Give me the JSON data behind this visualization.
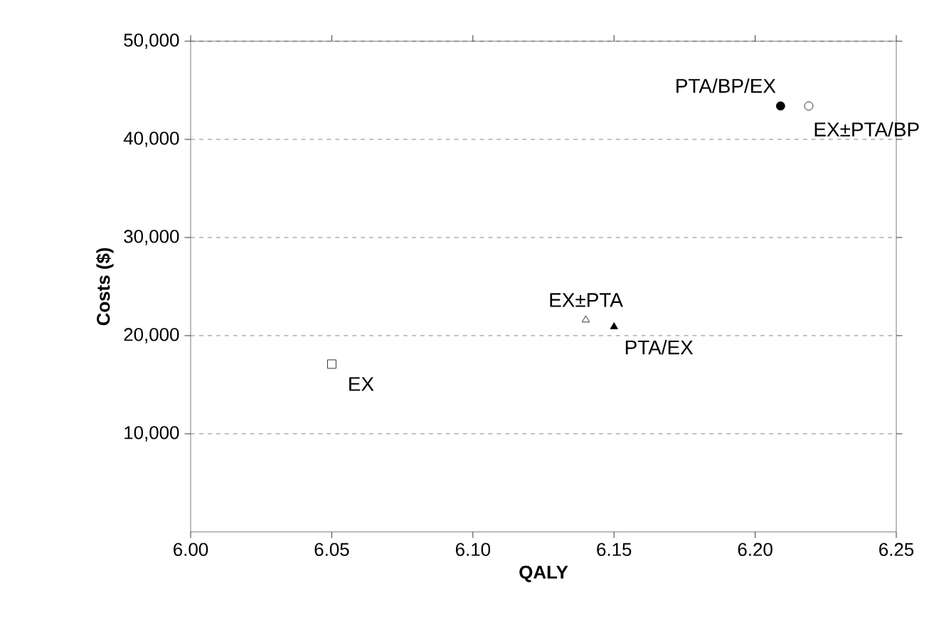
{
  "chart_data": {
    "type": "scatter",
    "xlabel": "QALY",
    "ylabel": "Costs ($)",
    "xlim": [
      6.0,
      6.25
    ],
    "ylim": [
      0,
      50000
    ],
    "xticks": [
      {
        "value": 6.0,
        "label": "6.00"
      },
      {
        "value": 6.05,
        "label": "6.05"
      },
      {
        "value": 6.1,
        "label": "6.10"
      },
      {
        "value": 6.15,
        "label": "6.15"
      },
      {
        "value": 6.2,
        "label": "6.20"
      },
      {
        "value": 6.25,
        "label": "6.25"
      }
    ],
    "yticks": [
      {
        "value": 10000,
        "label": "10,000"
      },
      {
        "value": 20000,
        "label": "20,000"
      },
      {
        "value": 30000,
        "label": "30,000"
      },
      {
        "value": 40000,
        "label": "40,000"
      },
      {
        "value": 50000,
        "label": "50,000"
      }
    ],
    "grid": "y",
    "series": [
      {
        "x": [
          6.209
        ],
        "values": [
          43400
        ],
        "marker": "circle",
        "color": "#000000"
      },
      {
        "x": [
          6.219
        ],
        "values": [
          43400
        ],
        "marker": "circle",
        "color": "#ffffff"
      },
      {
        "x": [
          6.14
        ],
        "values": [
          21600
        ],
        "marker": "triangle",
        "color": "#ffffff"
      },
      {
        "x": [
          6.15
        ],
        "values": [
          20900
        ],
        "marker": "triangle",
        "color": "#000000"
      },
      {
        "x": [
          6.05
        ],
        "values": [
          17100
        ],
        "marker": "square",
        "color": "#ffffff"
      }
    ],
    "annotations": [
      {
        "text": "PTA/BP/EX",
        "x": 6.209,
        "y": 43400
      },
      {
        "text": "EX±PTA/BP",
        "x": 6.219,
        "y": 43400
      },
      {
        "text": "EX±PTA",
        "x": 6.14,
        "y": 21600
      },
      {
        "text": "PTA/EX",
        "x": 6.15,
        "y": 20900
      },
      {
        "text": "EX",
        "x": 6.05,
        "y": 17100
      }
    ]
  }
}
